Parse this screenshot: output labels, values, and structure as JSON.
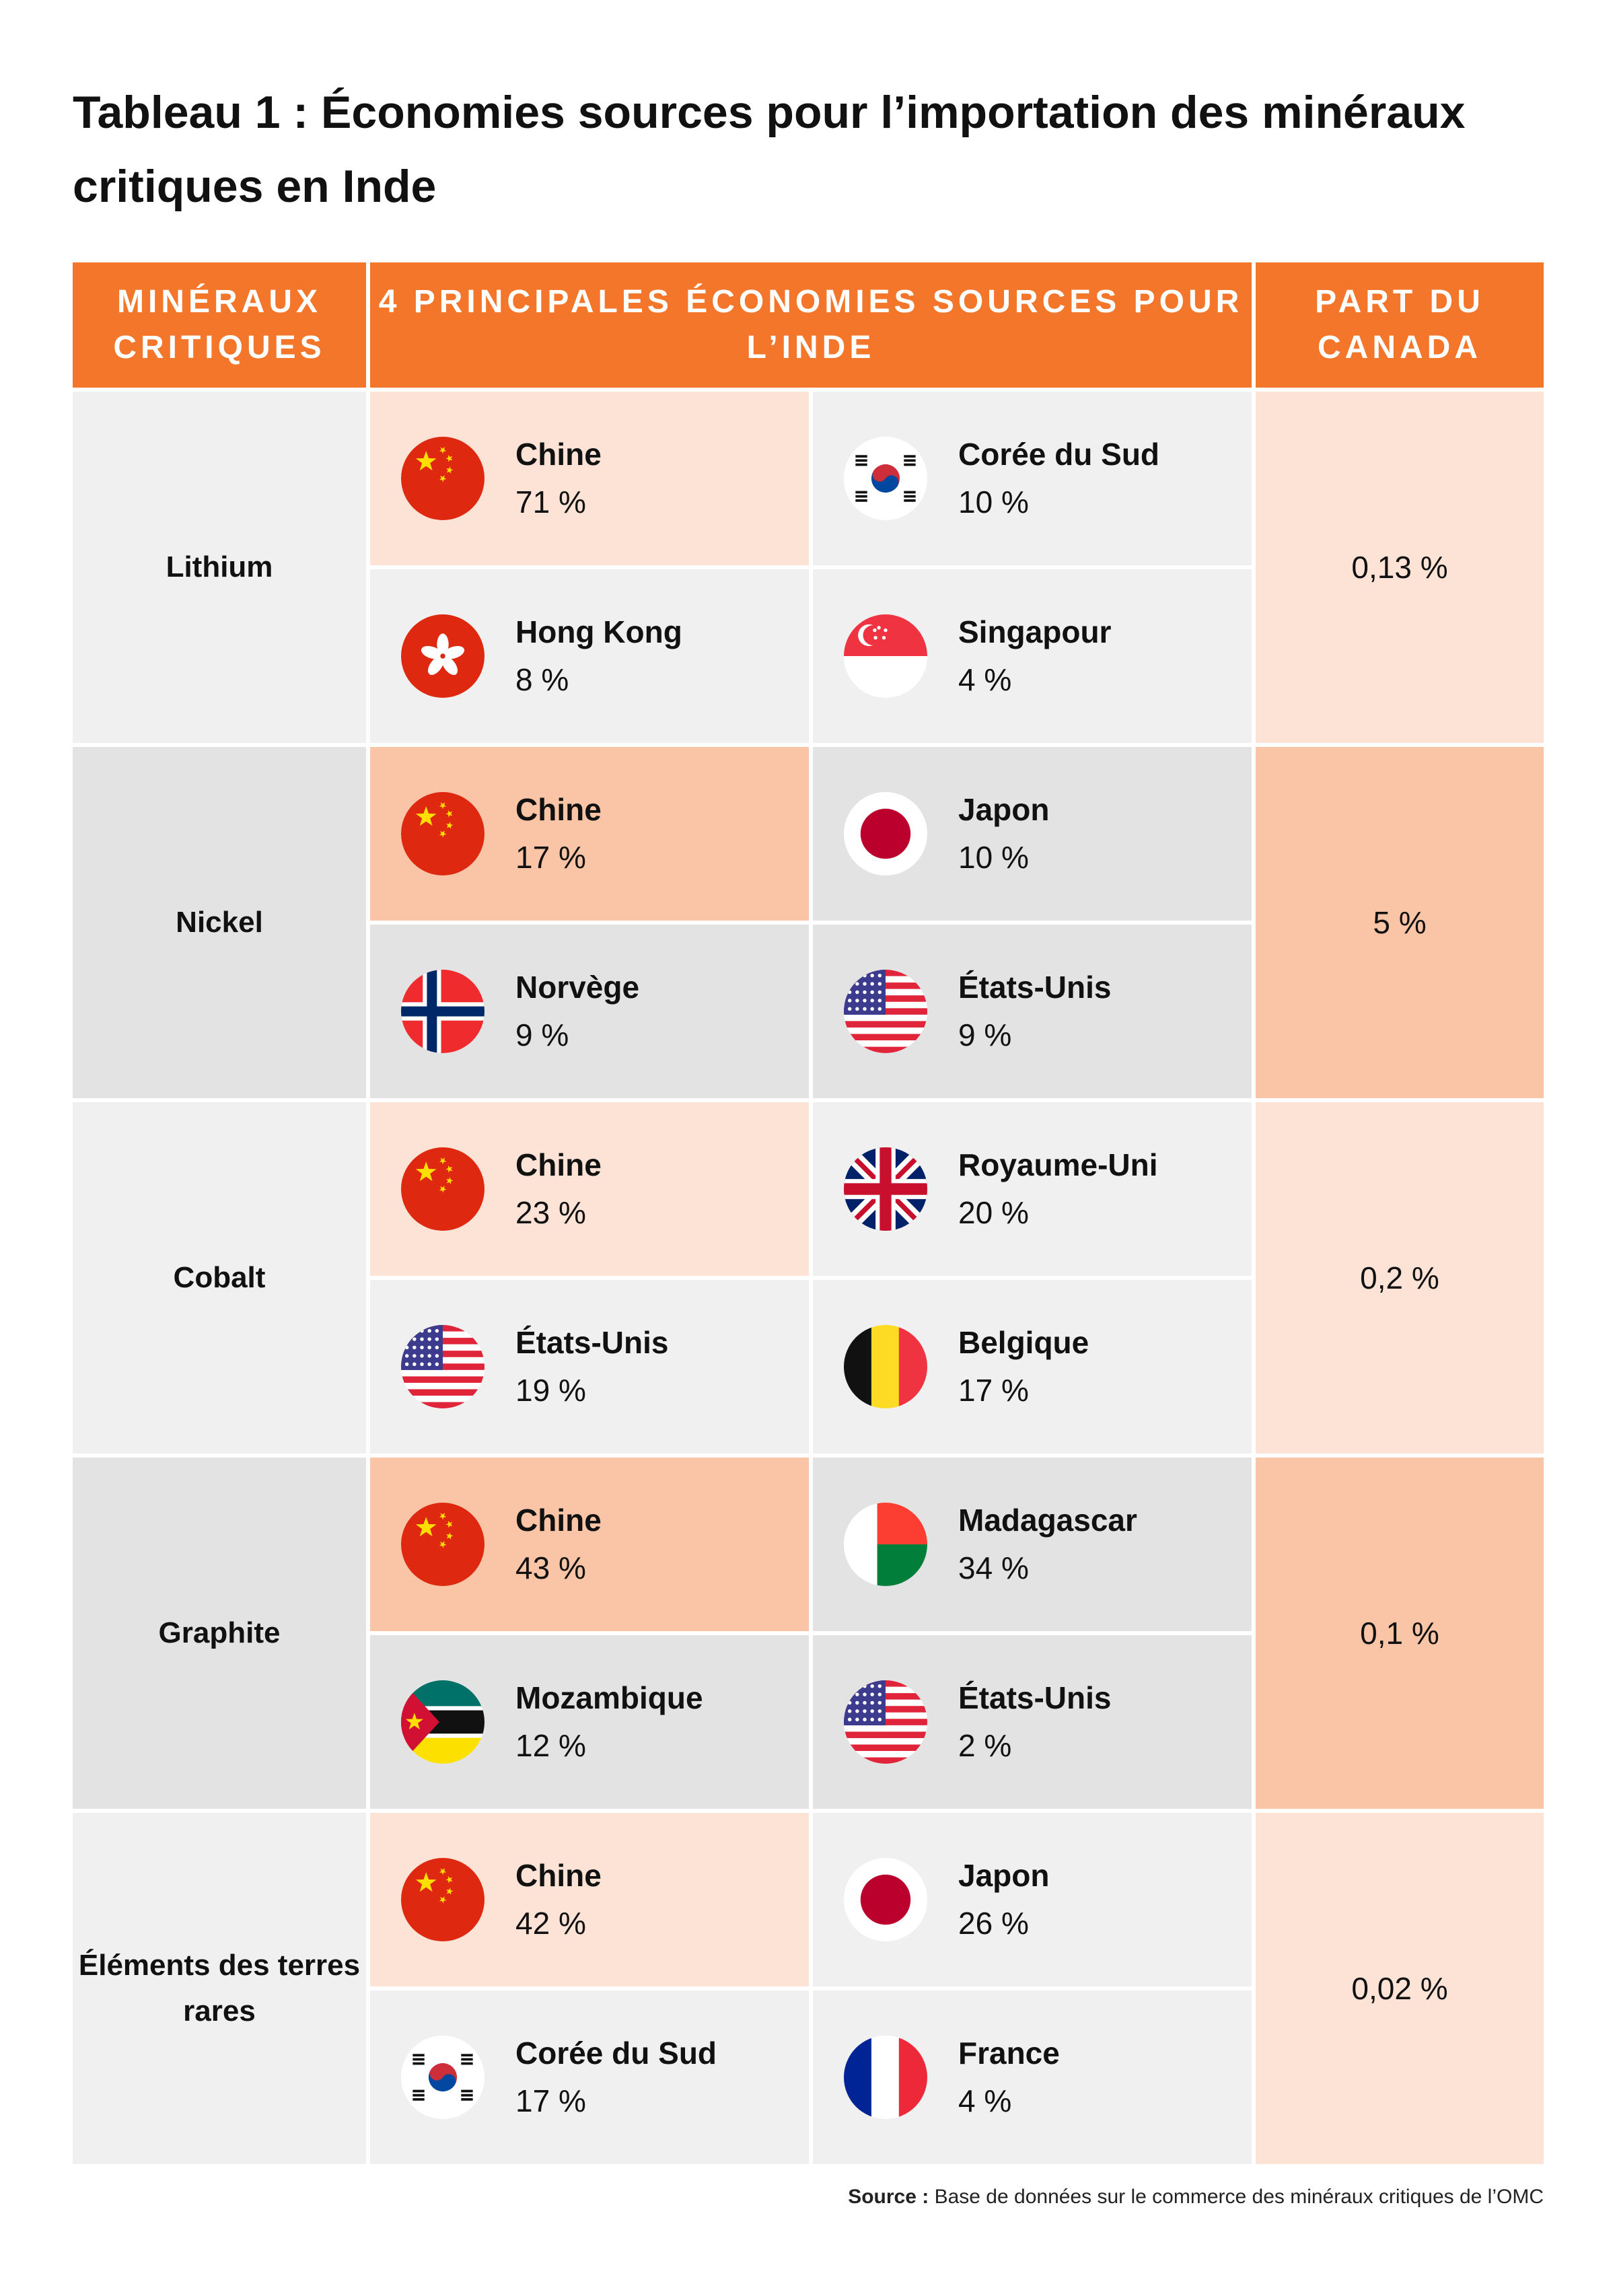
{
  "title": "Tableau 1 : Économies sources pour l’importation des minéraux critiques en Inde",
  "headers": {
    "minerals": "MINÉRAUX CRITIQUES",
    "sources": "4 PRINCIPALES ÉCONOMIES SOURCES POUR L’INDE",
    "canada": "PART DU CANADA"
  },
  "rows": [
    {
      "mineral": "Lithium",
      "canada_share": "0,13 %",
      "sources": [
        {
          "country": "Chine",
          "share": "71 %",
          "flag": "china-flag-icon"
        },
        {
          "country": "Corée du Sud",
          "share": "10 %",
          "flag": "south-korea-flag-icon"
        },
        {
          "country": "Hong Kong",
          "share": "8 %",
          "flag": "hong-kong-flag-icon"
        },
        {
          "country": "Singapour",
          "share": "4 %",
          "flag": "singapore-flag-icon"
        }
      ]
    },
    {
      "mineral": "Nickel",
      "canada_share": "5 %",
      "sources": [
        {
          "country": "Chine",
          "share": "17 %",
          "flag": "china-flag-icon"
        },
        {
          "country": "Japon",
          "share": "10 %",
          "flag": "japan-flag-icon"
        },
        {
          "country": "Norvège",
          "share": "9 %",
          "flag": "norway-flag-icon"
        },
        {
          "country": "États-Unis",
          "share": "9 %",
          "flag": "usa-flag-icon"
        }
      ]
    },
    {
      "mineral": "Cobalt",
      "canada_share": "0,2 %",
      "sources": [
        {
          "country": "Chine",
          "share": "23 %",
          "flag": "china-flag-icon"
        },
        {
          "country": "Royaume-Uni",
          "share": "20 %",
          "flag": "uk-flag-icon"
        },
        {
          "country": "États-Unis",
          "share": "19 %",
          "flag": "usa-flag-icon"
        },
        {
          "country": "Belgique",
          "share": "17 %",
          "flag": "belgium-flag-icon"
        }
      ]
    },
    {
      "mineral": "Graphite",
      "canada_share": "0,1 %",
      "sources": [
        {
          "country": "Chine",
          "share": "43 %",
          "flag": "china-flag-icon"
        },
        {
          "country": "Madagascar",
          "share": "34 %",
          "flag": "madagascar-flag-icon"
        },
        {
          "country": "Mozambique",
          "share": "12 %",
          "flag": "mozambique-flag-icon"
        },
        {
          "country": "États-Unis",
          "share": "2 %",
          "flag": "usa-flag-icon"
        }
      ]
    },
    {
      "mineral": "Éléments des terres rares",
      "canada_share": "0,02 %",
      "sources": [
        {
          "country": "Chine",
          "share": "42 %",
          "flag": "china-flag-icon"
        },
        {
          "country": "Japon",
          "share": "26 %",
          "flag": "japan-flag-icon"
        },
        {
          "country": "Corée du Sud",
          "share": "17 %",
          "flag": "south-korea-flag-icon"
        },
        {
          "country": "France",
          "share": "4 %",
          "flag": "france-flag-icon"
        }
      ]
    }
  ],
  "footer": {
    "source_label": "Source :",
    "source_text": "Base de données sur le commerce des minéraux critiques de l’OMC"
  },
  "colors": {
    "header": "#f4762a",
    "highlight_light": "#fce3d6",
    "highlight_dark": "#f9c5a6",
    "neutral_light": "#f0f0f0",
    "neutral_dark": "#e3e3e3"
  }
}
